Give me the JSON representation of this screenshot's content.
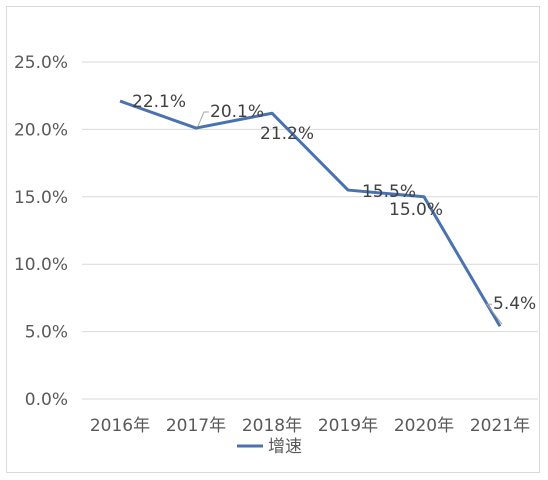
{
  "chart_data": {
    "type": "line",
    "categories": [
      "2016年",
      "2017年",
      "2018年",
      "2019年",
      "2020年",
      "2021年"
    ],
    "series": [
      {
        "name": "增速",
        "values": [
          22.1,
          20.1,
          21.2,
          15.5,
          15.0,
          5.4
        ],
        "color": "#4a72b0"
      }
    ],
    "data_labels": [
      "22.1%",
      "20.1%",
      "21.2%",
      "15.5%",
      "15.0%",
      "5.4%"
    ],
    "y_ticks": [
      "0.0%",
      "5.0%",
      "10.0%",
      "15.0%",
      "20.0%",
      "25.0%"
    ],
    "ylim": [
      0,
      25
    ],
    "grid": true,
    "legend_position": "bottom",
    "gridline_color": "#d9d9d9",
    "axis_text_color": "#595959"
  }
}
